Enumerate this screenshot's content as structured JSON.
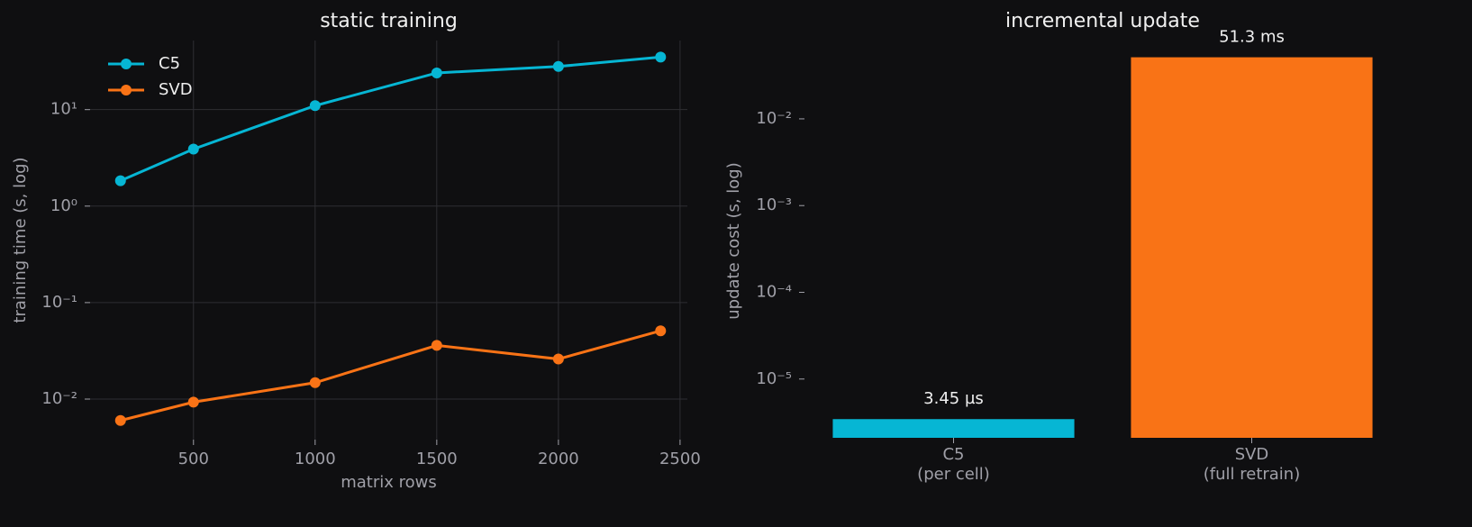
{
  "chart_data": [
    {
      "type": "line",
      "title": "static training",
      "x_label": "matrix rows",
      "y_label": "training time (s, log)",
      "x": [
        200,
        500,
        1000,
        1500,
        2000,
        2420
      ],
      "series": [
        {
          "name": "C5",
          "color": "#06b6d4",
          "values": [
            1.83,
            3.9,
            11,
            24,
            28,
            35
          ]
        },
        {
          "name": "SVD",
          "color": "#f97316",
          "values": [
            0.006,
            0.0093,
            0.0148,
            0.036,
            0.026,
            0.051
          ]
        }
      ],
      "xlim": [
        75,
        2530
      ],
      "xticks": [
        500,
        1000,
        1500,
        2000,
        2500
      ],
      "ylim": [
        0.0038,
        52
      ],
      "yscale": "log",
      "yticks": [
        {
          "value": 0.01,
          "label": "10⁻²"
        },
        {
          "value": 0.1,
          "label": "10⁻¹"
        },
        {
          "value": 1,
          "label": "10⁰"
        },
        {
          "value": 10,
          "label": "10¹"
        }
      ],
      "grid": true,
      "legend": "upper left"
    },
    {
      "type": "bar",
      "title": "incremental update",
      "y_label": "update cost (s, log)",
      "categories": [
        "C5\n(per cell)",
        "SVD\n(full retrain)"
      ],
      "values": [
        3.45e-06,
        0.0513
      ],
      "value_labels": [
        "3.45 µs",
        "51.3 ms"
      ],
      "colors": [
        "#06b6d4",
        "#f97316"
      ],
      "ylim": [
        2.1e-06,
        0.08
      ],
      "yscale": "log",
      "yticks": [
        {
          "value": 1e-05,
          "label": "10⁻⁵"
        },
        {
          "value": 0.0001,
          "label": "10⁻⁴"
        },
        {
          "value": 0.001,
          "label": "10⁻³"
        },
        {
          "value": 0.01,
          "label": "10⁻²"
        }
      ],
      "grid": false
    }
  ]
}
